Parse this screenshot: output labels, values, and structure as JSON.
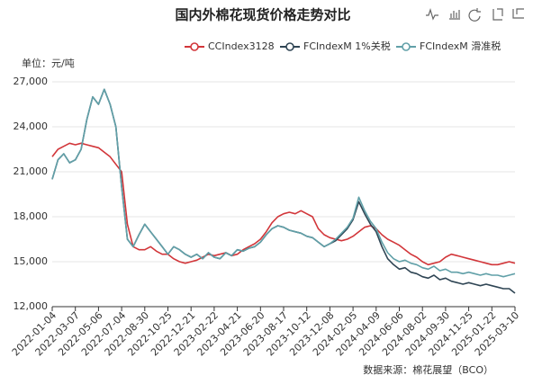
{
  "chart_data": {
    "type": "line",
    "title": "国内外棉花现货价格走势对比",
    "y_label": "单位：元/吨",
    "source": "数据来源：棉花展望（BCO）",
    "categories": [
      "2022-01-04",
      null,
      null,
      null,
      "2022-03-07",
      null,
      null,
      null,
      "2022-05-06",
      null,
      null,
      null,
      "2022-07-04",
      null,
      null,
      null,
      "2022-08-30",
      null,
      null,
      null,
      "2022-10-25",
      null,
      null,
      null,
      "2022-12-21",
      null,
      null,
      null,
      "2023-02-22",
      null,
      null,
      null,
      "2023-04-21",
      null,
      null,
      null,
      "2023-06-20",
      null,
      null,
      null,
      "2023-08-17",
      null,
      null,
      null,
      "2023-10-12",
      null,
      null,
      null,
      "2023-12-08",
      null,
      null,
      null,
      "2024-02-05",
      null,
      null,
      null,
      "2024-04-09",
      null,
      null,
      null,
      "2024-06-06",
      null,
      null,
      null,
      "2024-08-02",
      null,
      null,
      null,
      "2024-09-30",
      null,
      null,
      null,
      "2024-11-25",
      null,
      null,
      null,
      "2025-01-22",
      null,
      null,
      null,
      "2025-03-10"
    ],
    "series": [
      {
        "name": "CCIndex3128",
        "color": "#d2363a",
        "values": [
          22000,
          22500,
          22700,
          22900,
          22800,
          22900,
          22800,
          22700,
          22600,
          22300,
          22000,
          21500,
          21000,
          17500,
          16000,
          15800,
          15800,
          16000,
          15700,
          15500,
          15500,
          15200,
          15000,
          14900,
          15000,
          15100,
          15300,
          15500,
          15400,
          15500,
          15600,
          15400,
          15500,
          15800,
          16000,
          16200,
          16500,
          17000,
          17600,
          18000,
          18200,
          18300,
          18200,
          18400,
          18200,
          18000,
          17200,
          16800,
          16600,
          16500,
          16400,
          16500,
          16700,
          17000,
          17300,
          17400,
          17200,
          16800,
          16500,
          16300,
          16100,
          15800,
          15500,
          15300,
          15000,
          14800,
          14900,
          15000,
          15300,
          15500,
          15400,
          15300,
          15200,
          15100,
          15000,
          14900,
          14800,
          14800,
          14900,
          15000,
          14900
        ]
      },
      {
        "name": "FCIndexM 1%关税",
        "color": "#2f4554",
        "values": [
          20500,
          21800,
          22200,
          21600,
          21800,
          22500,
          24500,
          26000,
          25500,
          26500,
          25500,
          24000,
          20000,
          16500,
          16000,
          16800,
          17500,
          17000,
          16500,
          16000,
          15500,
          16000,
          15800,
          15500,
          15300,
          15500,
          15200,
          15600,
          15300,
          15200,
          15600,
          15400,
          15800,
          15700,
          15900,
          16000,
          16300,
          16800,
          17200,
          17400,
          17300,
          17100,
          17000,
          16900,
          16700,
          16600,
          16300,
          16000,
          16200,
          16400,
          16800,
          17200,
          17800,
          19000,
          18200,
          17500,
          17000,
          16000,
          15200,
          14800,
          14500,
          14600,
          14300,
          14200,
          14000,
          13900,
          14100,
          13800,
          13900,
          13700,
          13600,
          13500,
          13600,
          13500,
          13400,
          13500,
          13400,
          13300,
          13200,
          13200,
          12900
        ]
      },
      {
        "name": "FCIndexM 滑准税",
        "color": "#61a0a8",
        "values": [
          20500,
          21800,
          22200,
          21600,
          21800,
          22500,
          24500,
          26000,
          25500,
          26500,
          25500,
          24000,
          20000,
          16500,
          16000,
          16800,
          17500,
          17000,
          16500,
          16000,
          15500,
          16000,
          15800,
          15500,
          15300,
          15500,
          15200,
          15600,
          15300,
          15200,
          15600,
          15400,
          15800,
          15700,
          15900,
          16000,
          16300,
          16800,
          17200,
          17400,
          17300,
          17100,
          17000,
          16900,
          16700,
          16600,
          16300,
          16000,
          16200,
          16500,
          16900,
          17300,
          17900,
          19300,
          18400,
          17700,
          17200,
          16300,
          15600,
          15200,
          15000,
          15100,
          14900,
          14800,
          14600,
          14500,
          14700,
          14400,
          14500,
          14300,
          14300,
          14200,
          14300,
          14200,
          14100,
          14200,
          14100,
          14100,
          14000,
          14100,
          14200
        ]
      }
    ],
    "ylim": [
      12000,
      27000
    ],
    "yticks": [
      {
        "value": 12000,
        "label": "12,000"
      },
      {
        "value": 15000,
        "label": "15,000"
      },
      {
        "value": 18000,
        "label": "18,000"
      },
      {
        "value": 21000,
        "label": "21,000"
      },
      {
        "value": 24000,
        "label": "24,000"
      },
      {
        "value": 27000,
        "label": "27,000"
      }
    ],
    "grid": true
  }
}
